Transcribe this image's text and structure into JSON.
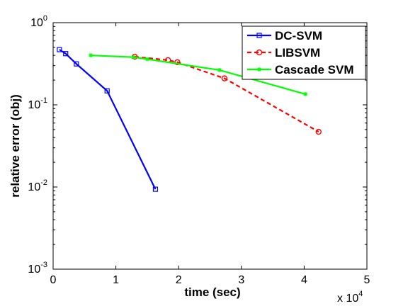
{
  "chart_data": {
    "type": "line",
    "title": "",
    "xlabel": "time (sec)",
    "ylabel": "relative error (obj)",
    "x_multiplier_label": "x 10",
    "x_multiplier_exp": "4",
    "xlim": [
      0,
      50000
    ],
    "ylim": [
      0.001,
      1
    ],
    "yscale": "log",
    "x_ticks": [
      0,
      10000,
      20000,
      30000,
      40000,
      50000
    ],
    "x_tick_labels": [
      "0",
      "1",
      "2",
      "3",
      "4",
      "5"
    ],
    "y_ticks": [
      1,
      0.1,
      0.01,
      0.001
    ],
    "y_tick_labels": [
      {
        "base": "10",
        "exp": "0"
      },
      {
        "base": "10",
        "exp": "-1"
      },
      {
        "base": "10",
        "exp": "-2"
      },
      {
        "base": "10",
        "exp": "-3"
      }
    ],
    "grid": false,
    "legend_position": "top-right",
    "series": [
      {
        "name": "DC-SVM",
        "color": "#0000ff",
        "line_style": "solid",
        "marker": "square",
        "x": [
          1000,
          2000,
          3700,
          8600,
          16300
        ],
        "y": [
          0.47,
          0.42,
          0.315,
          0.148,
          0.0094
        ]
      },
      {
        "name": "LIBSVM",
        "color": "#ff0000",
        "line_style": "dashed",
        "marker": "circle",
        "x": [
          13000,
          18300,
          19800,
          27300,
          42300
        ],
        "y": [
          0.385,
          0.35,
          0.33,
          0.21,
          0.047
        ]
      },
      {
        "name": "Cascade SVM",
        "color": "#00ff00",
        "line_style": "solid",
        "marker": "star",
        "x": [
          6000,
          12800,
          15000,
          26500,
          40200
        ],
        "y": [
          0.4,
          0.38,
          0.36,
          0.265,
          0.135
        ]
      }
    ]
  }
}
